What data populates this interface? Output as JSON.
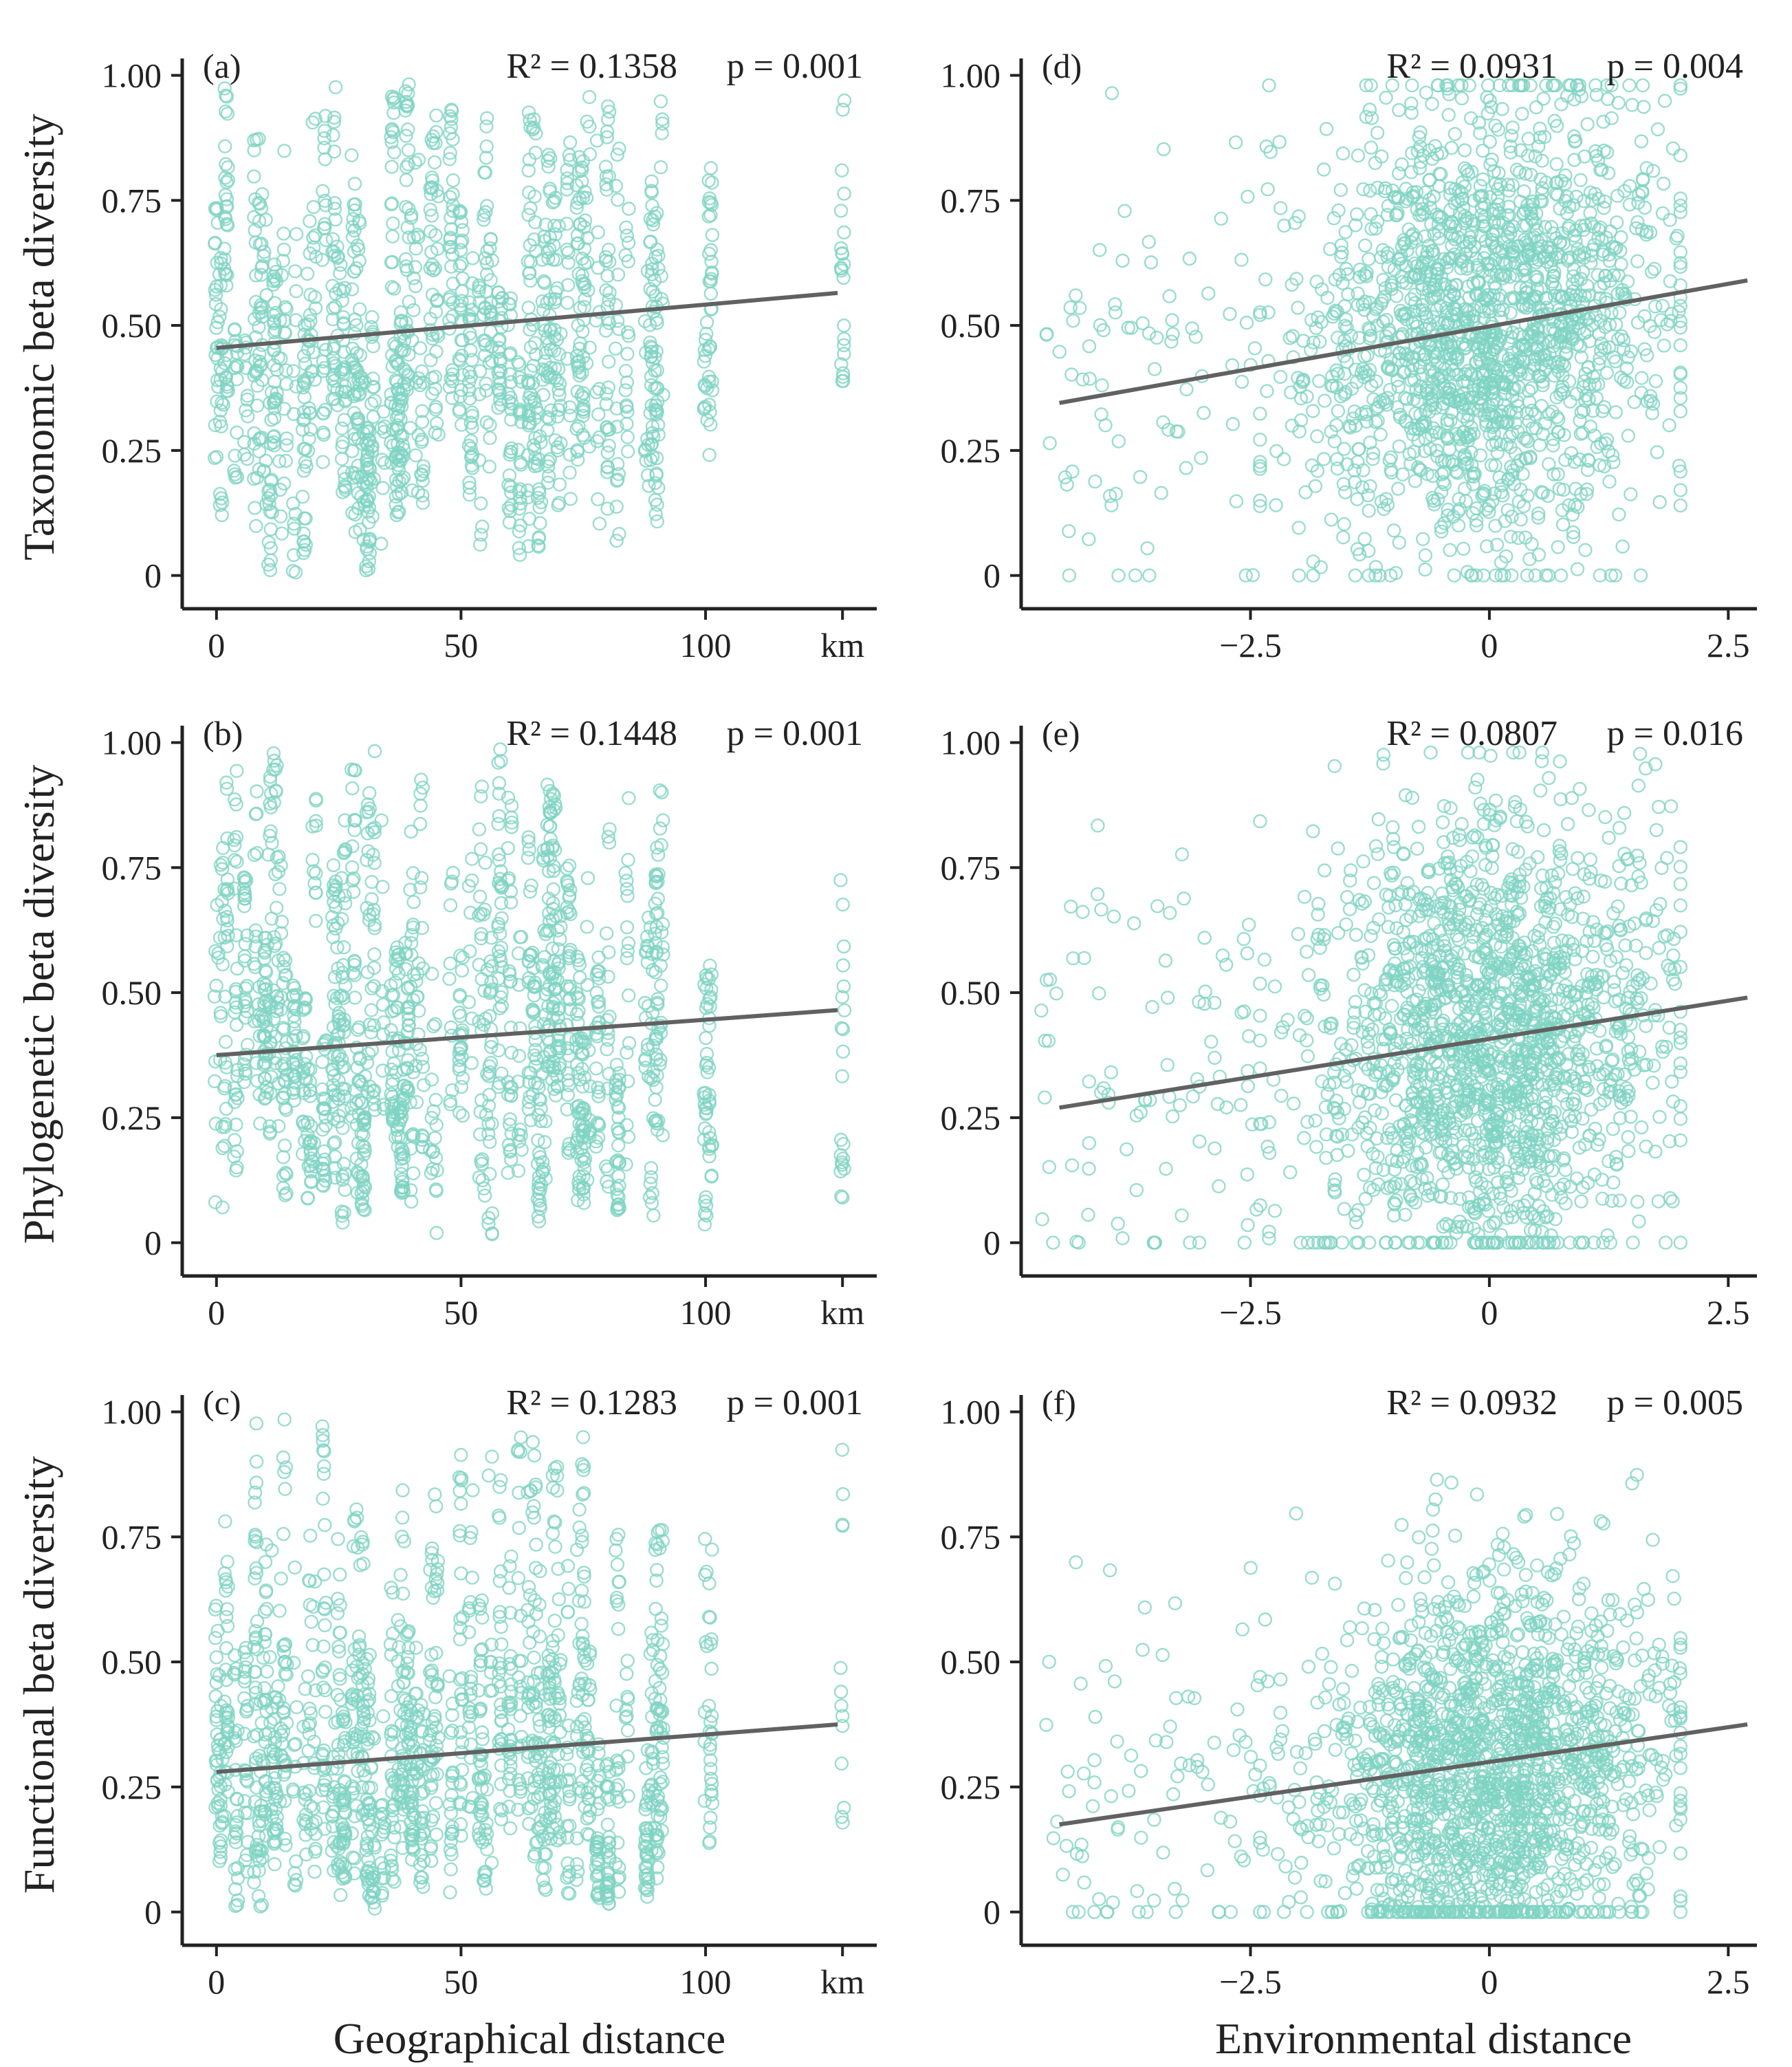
{
  "figure": {
    "colors": {
      "points": "#7fd3c3",
      "fit_line": "#616161",
      "axis": "#222222"
    },
    "x_titles": {
      "geo": "Geographical distance",
      "env": "Environmental distance"
    },
    "y_titles": [
      "Taxonomic  beta diversity",
      "Phylogenetic  beta diversity",
      "Functional  beta diversity"
    ]
  },
  "chart_data": [
    {
      "id": "a",
      "type": "scatter",
      "panel_label": "(a)",
      "stats": {
        "r2": "R² = 0.1358",
        "p": "p = 0.001"
      },
      "xlabel": "Geographical distance",
      "ylabel": "Taxonomic  beta diversity",
      "x_kind": "geo",
      "xlim": [
        -7,
        135
      ],
      "ylim": [
        -0.05,
        1.02
      ],
      "xticks": [
        {
          "v": 0,
          "label": "0"
        },
        {
          "v": 50,
          "label": "50"
        },
        {
          "v": 100,
          "label": "100"
        },
        {
          "v": 128,
          "label": "km"
        }
      ],
      "yticks": [
        {
          "v": 0,
          "label": "0"
        },
        {
          "v": 0.25,
          "label": "0.25"
        },
        {
          "v": 0.5,
          "label": "0.50"
        },
        {
          "v": 0.75,
          "label": "0.75"
        },
        {
          "v": 1.0,
          "label": "1.00"
        }
      ],
      "fit": {
        "x": [
          0,
          127
        ],
        "y": [
          0.455,
          0.565
        ]
      },
      "seed": 11
    },
    {
      "id": "b",
      "type": "scatter",
      "panel_label": "(b)",
      "stats": {
        "r2": "R² = 0.1448",
        "p": "p = 0.001"
      },
      "xlabel": "Geographical distance",
      "ylabel": "Phylogenetic  beta diversity",
      "x_kind": "geo",
      "xlim": [
        -7,
        135
      ],
      "ylim": [
        -0.05,
        1.02
      ],
      "xticks": [
        {
          "v": 0,
          "label": "0"
        },
        {
          "v": 50,
          "label": "50"
        },
        {
          "v": 100,
          "label": "100"
        },
        {
          "v": 128,
          "label": "km"
        }
      ],
      "yticks": [
        {
          "v": 0,
          "label": "0"
        },
        {
          "v": 0.25,
          "label": "0.25"
        },
        {
          "v": 0.5,
          "label": "0.50"
        },
        {
          "v": 0.75,
          "label": "0.75"
        },
        {
          "v": 1.0,
          "label": "1.00"
        }
      ],
      "fit": {
        "x": [
          0,
          127
        ],
        "y": [
          0.375,
          0.465
        ]
      },
      "seed": 23
    },
    {
      "id": "c",
      "type": "scatter",
      "panel_label": "(c)",
      "stats": {
        "r2": "R² = 0.1283",
        "p": "p = 0.001"
      },
      "xlabel": "Geographical distance",
      "ylabel": "Functional  beta diversity",
      "x_kind": "geo",
      "xlim": [
        -7,
        135
      ],
      "ylim": [
        -0.05,
        1.02
      ],
      "xticks": [
        {
          "v": 0,
          "label": "0"
        },
        {
          "v": 50,
          "label": "50"
        },
        {
          "v": 100,
          "label": "100"
        },
        {
          "v": 128,
          "label": "km"
        }
      ],
      "yticks": [
        {
          "v": 0,
          "label": "0"
        },
        {
          "v": 0.25,
          "label": "0.25"
        },
        {
          "v": 0.5,
          "label": "0.50"
        },
        {
          "v": 0.75,
          "label": "0.75"
        },
        {
          "v": 1.0,
          "label": "1.00"
        }
      ],
      "fit": {
        "x": [
          0,
          127
        ],
        "y": [
          0.28,
          0.375
        ]
      },
      "seed": 37
    },
    {
      "id": "d",
      "type": "scatter",
      "panel_label": "(d)",
      "stats": {
        "r2": "R² = 0.0931",
        "p": "p = 0.004"
      },
      "xlabel": "Environmental distance",
      "ylabel": "",
      "x_kind": "env",
      "xlim": [
        -4.9,
        2.8
      ],
      "ylim": [
        -0.05,
        1.02
      ],
      "xticks": [
        {
          "v": -2.5,
          "label": "−2.5"
        },
        {
          "v": 0,
          "label": "0"
        },
        {
          "v": 2.5,
          "label": "2.5"
        }
      ],
      "yticks": [
        {
          "v": 0,
          "label": "0"
        },
        {
          "v": 0.25,
          "label": "0.25"
        },
        {
          "v": 0.5,
          "label": "0.50"
        },
        {
          "v": 0.75,
          "label": "0.75"
        },
        {
          "v": 1.0,
          "label": "1.00"
        }
      ],
      "fit": {
        "x": [
          -4.5,
          2.7
        ],
        "y": [
          0.345,
          0.59
        ]
      },
      "seed": 41
    },
    {
      "id": "e",
      "type": "scatter",
      "panel_label": "(e)",
      "stats": {
        "r2": "R² = 0.0807",
        "p": "p = 0.016"
      },
      "xlabel": "Environmental distance",
      "ylabel": "",
      "x_kind": "env",
      "xlim": [
        -4.9,
        2.8
      ],
      "ylim": [
        -0.05,
        1.02
      ],
      "xticks": [
        {
          "v": -2.5,
          "label": "−2.5"
        },
        {
          "v": 0,
          "label": "0"
        },
        {
          "v": 2.5,
          "label": "2.5"
        }
      ],
      "yticks": [
        {
          "v": 0,
          "label": "0"
        },
        {
          "v": 0.25,
          "label": "0.25"
        },
        {
          "v": 0.5,
          "label": "0.50"
        },
        {
          "v": 0.75,
          "label": "0.75"
        },
        {
          "v": 1.0,
          "label": "1.00"
        }
      ],
      "fit": {
        "x": [
          -4.5,
          2.7
        ],
        "y": [
          0.27,
          0.49
        ]
      },
      "seed": 53
    },
    {
      "id": "f",
      "type": "scatter",
      "panel_label": "(f)",
      "stats": {
        "r2": "R² = 0.0932",
        "p": "p = 0.005"
      },
      "xlabel": "Environmental distance",
      "ylabel": "",
      "x_kind": "env",
      "xlim": [
        -4.9,
        2.8
      ],
      "ylim": [
        -0.05,
        1.02
      ],
      "xticks": [
        {
          "v": -2.5,
          "label": "−2.5"
        },
        {
          "v": 0,
          "label": "0"
        },
        {
          "v": 2.5,
          "label": "2.5"
        }
      ],
      "yticks": [
        {
          "v": 0,
          "label": "0"
        },
        {
          "v": 0.25,
          "label": "0.25"
        },
        {
          "v": 0.5,
          "label": "0.50"
        },
        {
          "v": 0.75,
          "label": "0.75"
        },
        {
          "v": 1.0,
          "label": "1.00"
        }
      ],
      "fit": {
        "x": [
          -4.5,
          2.7
        ],
        "y": [
          0.175,
          0.375
        ]
      },
      "seed": 67
    }
  ]
}
